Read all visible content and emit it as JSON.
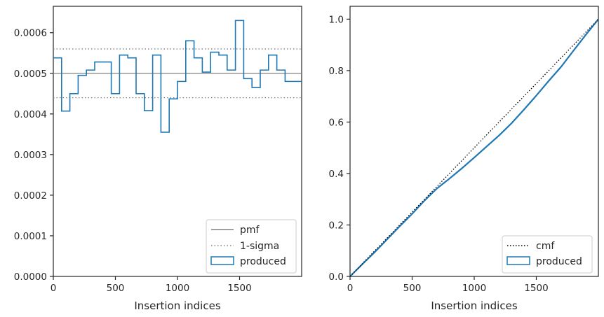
{
  "colors": {
    "produced": "#1f77b4",
    "pmf": "#808080",
    "sigma": "#808080",
    "cmf": "#000000",
    "axes": "#262626"
  },
  "chart_data": [
    {
      "type": "histogram-step",
      "xlabel": "Insertion indices",
      "ylabel": "",
      "xlim": [
        0,
        2000
      ],
      "ylim": [
        0,
        0.000665
      ],
      "xticks": [
        0,
        500,
        1000,
        1500
      ],
      "xtick_labels": [
        "0",
        "500",
        "1000",
        "1500"
      ],
      "yticks": [
        0,
        0.0001,
        0.0002,
        0.0003,
        0.0004,
        0.0005,
        0.0006
      ],
      "ytick_labels": [
        "0.0000",
        "0.0001",
        "0.0002",
        "0.0003",
        "0.0004",
        "0.0005",
        "0.0006"
      ],
      "bin_width": 66.67,
      "series": [
        {
          "name": "produced",
          "values": [
            0.000538,
            0.000407,
            0.00045,
            0.000495,
            0.000508,
            0.000528,
            0.000528,
            0.00045,
            0.000545,
            0.000538,
            0.00045,
            0.000408,
            0.000545,
            0.000355,
            0.000437,
            0.00048,
            0.00058,
            0.000538,
            0.000503,
            0.000552,
            0.000545,
            0.000508,
            0.00063,
            0.000487,
            0.000465,
            0.000508,
            0.000545,
            0.000508,
            0.00048,
            0.00048
          ]
        }
      ],
      "reference_lines": {
        "pmf": 0.0005,
        "sigma": [
          0.00044,
          0.00056
        ]
      },
      "legend": {
        "position": "lower-right",
        "entries": [
          "pmf",
          "1-sigma",
          "produced"
        ]
      }
    },
    {
      "type": "line",
      "xlabel": "Insertion indices",
      "ylabel": "",
      "xlim": [
        0,
        2000
      ],
      "ylim": [
        0,
        1.05
      ],
      "xticks": [
        0,
        500,
        1000,
        1500
      ],
      "xtick_labels": [
        "0",
        "500",
        "1000",
        "1500"
      ],
      "yticks": [
        0,
        0.2,
        0.4,
        0.6,
        0.8,
        1.0
      ],
      "ytick_labels": [
        "0.0",
        "0.2",
        "0.4",
        "0.6",
        "0.8",
        "1.0"
      ],
      "series": [
        {
          "name": "cmf",
          "x": [
            0,
            2000
          ],
          "y": [
            0,
            1.0
          ]
        },
        {
          "name": "produced",
          "x": [
            0,
            100,
            200,
            300,
            400,
            500,
            600,
            700,
            800,
            900,
            1000,
            1100,
            1200,
            1300,
            1400,
            1500,
            1600,
            1700,
            1800,
            1900,
            2000
          ],
          "y": [
            0,
            0.048,
            0.095,
            0.145,
            0.195,
            0.243,
            0.295,
            0.342,
            0.38,
            0.42,
            0.462,
            0.505,
            0.548,
            0.595,
            0.648,
            0.703,
            0.76,
            0.815,
            0.878,
            0.94,
            1.0
          ]
        }
      ],
      "legend": {
        "position": "lower-right",
        "entries": [
          "cmf",
          "produced"
        ]
      }
    }
  ]
}
